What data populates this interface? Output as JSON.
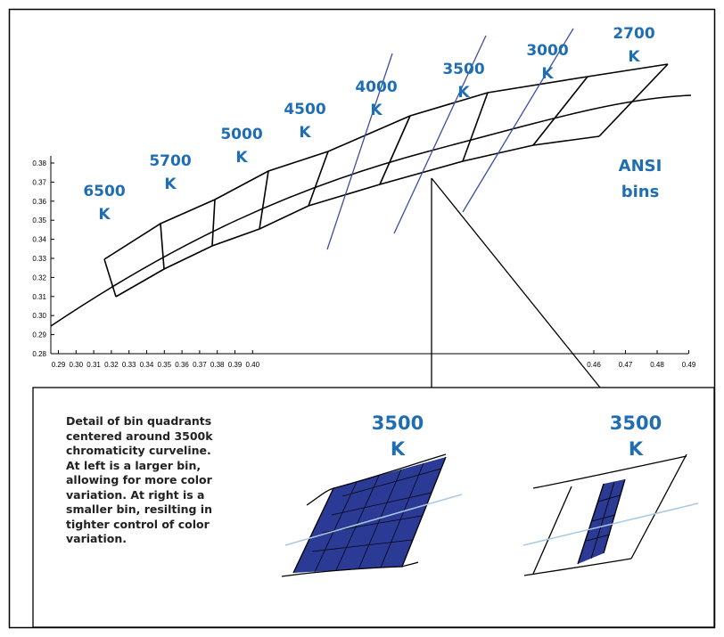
{
  "chart_data": {
    "type": "diagram",
    "y_ticks": [
      "0.38",
      "0.37",
      "0.36",
      "0.35",
      "0.34",
      "0.33",
      "0.32",
      "0.31",
      "0.30",
      "0.29",
      "0.28"
    ],
    "x_ticks_left": [
      "0.29",
      "0.30",
      "0.31",
      "0.32",
      "0.33",
      "0.34",
      "0.35",
      "0.36",
      "0.37",
      "0.38",
      "0.39",
      "0.40"
    ],
    "x_ticks_right": [
      "0.46",
      "0.47",
      "0.48",
      "0.49"
    ],
    "cct_labels": [
      {
        "num": "6500",
        "unit": "K"
      },
      {
        "num": "5700",
        "unit": "K"
      },
      {
        "num": "5000",
        "unit": "K"
      },
      {
        "num": "4500",
        "unit": "K"
      },
      {
        "num": "4000",
        "unit": "K"
      },
      {
        "num": "3500",
        "unit": "K"
      },
      {
        "num": "3000",
        "unit": "K"
      },
      {
        "num": "2700",
        "unit": "K"
      }
    ],
    "ansi": {
      "line1": "ANSI",
      "line2": "bins"
    }
  },
  "detail": {
    "lines": [
      "Detail of bin quadrants",
      "centered around 3500k",
      "chromaticity curveline.",
      "At left is a larger bin,",
      "allowing for more color",
      "variation.  At right is a",
      "smaller bin, resilting in",
      "tighter control of color",
      "variation."
    ],
    "left_label": {
      "num": "3500",
      "unit": "K"
    },
    "right_label": {
      "num": "3500",
      "unit": "K"
    }
  },
  "colors": {
    "blue_text": "#1f6eb3",
    "fill": "#2b3a94",
    "curve_light": "#a8c8e6",
    "cct_line": "#3a4fa0"
  }
}
